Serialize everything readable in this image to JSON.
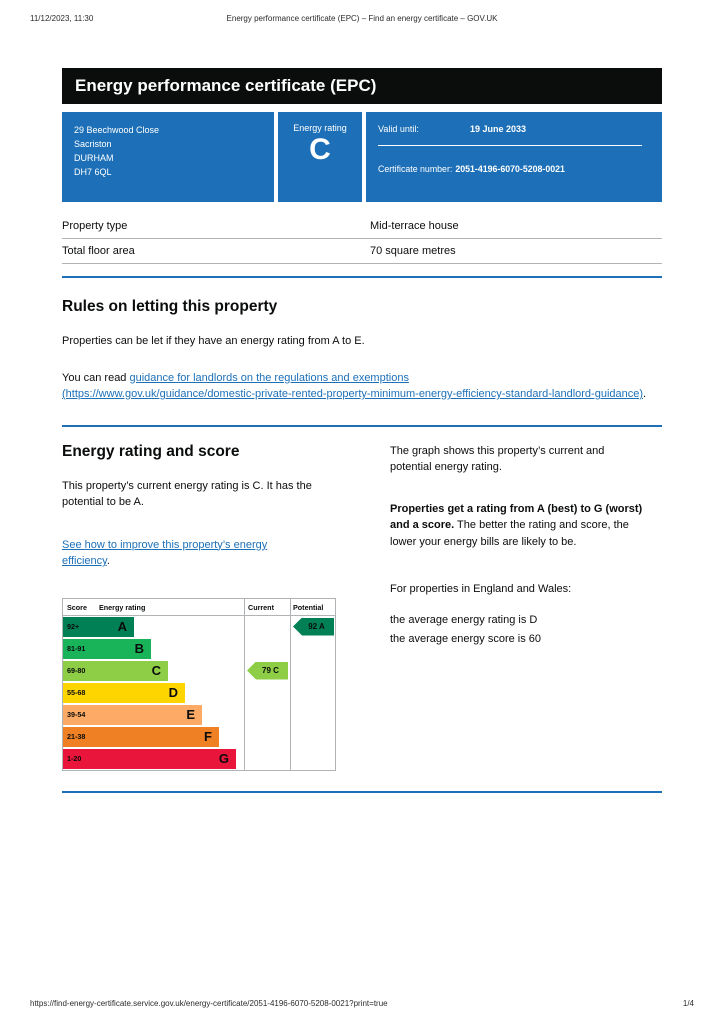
{
  "colors": {
    "govuk_blue": "#1d70b8",
    "banner_black": "#0b0c0c",
    "link_blue": "#1d70b8",
    "border_grey": "#b1b4b6"
  },
  "print_header": {
    "datetime": "11/12/2023, 11:30",
    "title": "Energy performance certificate (EPC) – Find an energy certificate – GOV.UK"
  },
  "banner": {
    "title": "Energy performance certificate (EPC)"
  },
  "certificate": {
    "address_lines": [
      "29 Beechwood Close",
      "Sacriston",
      "DURHAM",
      "DH7 6QL"
    ],
    "energy_rating_label": "Energy rating",
    "energy_rating": "C",
    "valid_until_label": "Valid until:",
    "valid_until": "19 June 2033",
    "certificate_number_label": "Certificate number:",
    "certificate_number": "2051-4196-6070-5208-0021"
  },
  "summary": {
    "rows": [
      {
        "label": "Property type",
        "value": "Mid-terrace house"
      },
      {
        "label": "Total floor area",
        "value": "70 square metres"
      }
    ]
  },
  "rules_section": {
    "heading": "Rules on letting this property",
    "paragraph1": "Properties can be let if they have an energy rating from A to E.",
    "paragraph2_prefix": "You can read ",
    "link_text": "guidance for landlords on the regulations and exemptions",
    "link_url_text": "(https://www.gov.uk/guidance/domestic-private-rented-property-minimum-energy-efficiency-standard-landlord-guidance)",
    "paragraph2_suffix": "."
  },
  "rating_section": {
    "heading": "Energy rating and score",
    "paragraph": "This property’s current energy rating is C. It has the potential to be A.",
    "improve_link": "See how to improve this property’s energy efficiency",
    "improve_suffix": ".",
    "graph_paragraph": "The graph shows this property’s current and potential energy rating.",
    "rating_bold": "Properties get a rating from A (best) to G (worst) and a score.",
    "rating_rest": " The better the rating and score, the lower your energy bills are likely to be.",
    "properties_line": "For properties in England and Wales:",
    "avg_rating_line": "the average energy rating is D",
    "avg_score_line": "the average energy score is 60"
  },
  "chart_data": {
    "type": "epc-rating-bands",
    "columns": [
      "Score",
      "Energy rating",
      "Current",
      "Potential"
    ],
    "bands": [
      {
        "score": "92+",
        "letter": "A",
        "color": "#008054"
      },
      {
        "score": "81-91",
        "letter": "B",
        "color": "#19b459"
      },
      {
        "score": "69-80",
        "letter": "C",
        "color": "#8dce46"
      },
      {
        "score": "55-68",
        "letter": "D",
        "color": "#ffd500"
      },
      {
        "score": "39-54",
        "letter": "E",
        "color": "#fcaa65"
      },
      {
        "score": "21-38",
        "letter": "F",
        "color": "#ef8023"
      },
      {
        "score": "1-20",
        "letter": "G",
        "color": "#e9153b"
      }
    ],
    "current": {
      "score": 79,
      "band": "C",
      "band_index": 2,
      "label": "79 C",
      "color": "#8dce46"
    },
    "potential": {
      "score": 92,
      "band": "A",
      "band_index": 0,
      "label": "92 A",
      "color": "#008054"
    }
  },
  "print_footer": {
    "url": "https://find-energy-certificate.service.gov.uk/energy-certificate/2051-4196-6070-5208-0021?print=true",
    "page": "1/4"
  }
}
